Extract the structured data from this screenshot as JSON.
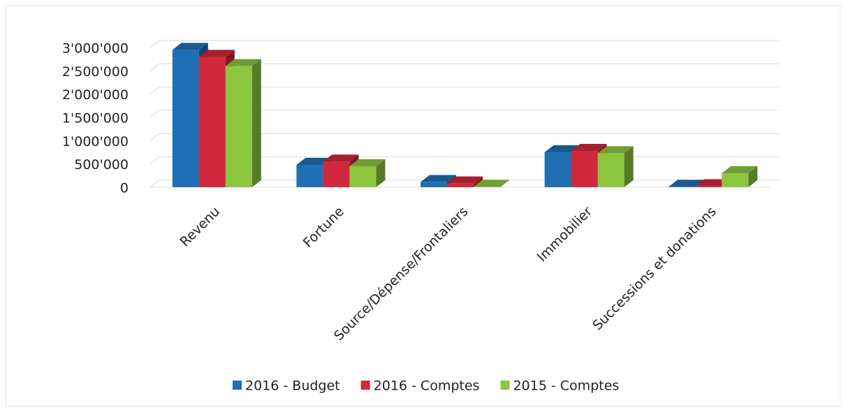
{
  "chart_data": {
    "type": "bar3d",
    "categories": [
      "Revenu",
      "Fortune",
      "Source/Dépense/Frontaliers",
      "Immobilier",
      "Successions et donations"
    ],
    "series": [
      {
        "name": "2016 - Budget",
        "color": "#1f6fb4",
        "values": [
          2950000,
          480000,
          110000,
          750000,
          10000
        ]
      },
      {
        "name": "2016 - Comptes",
        "color": "#d0283c",
        "values": [
          2800000,
          550000,
          80000,
          780000,
          20000
        ]
      },
      {
        "name": "2015 - Comptes",
        "color": "#8cc63f",
        "values": [
          2600000,
          450000,
          10000,
          730000,
          300000
        ]
      }
    ],
    "ylim": [
      0,
      3000000
    ],
    "yticks": [
      {
        "value": 0,
        "label": "0"
      },
      {
        "value": 500000,
        "label": "500'000"
      },
      {
        "value": 1000000,
        "label": "1'000'000"
      },
      {
        "value": 1500000,
        "label": "1'500'000"
      },
      {
        "value": 2000000,
        "label": "2'000'000"
      },
      {
        "value": 2500000,
        "label": "2'500'000"
      },
      {
        "value": 3000000,
        "label": "3'000'000"
      }
    ],
    "grid": true,
    "legend": "bottom"
  }
}
